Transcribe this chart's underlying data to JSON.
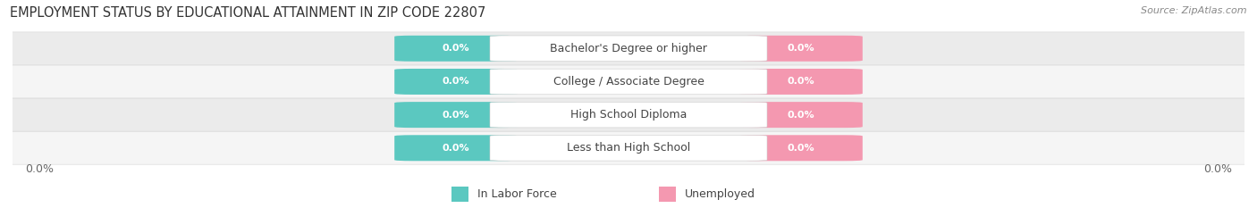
{
  "title": "EMPLOYMENT STATUS BY EDUCATIONAL ATTAINMENT IN ZIP CODE 22807",
  "source": "Source: ZipAtlas.com",
  "categories": [
    "Less than High School",
    "High School Diploma",
    "College / Associate Degree",
    "Bachelor's Degree or higher"
  ],
  "in_labor_force": [
    0.0,
    0.0,
    0.0,
    0.0
  ],
  "unemployed": [
    0.0,
    0.0,
    0.0,
    0.0
  ],
  "color_labor": "#5bc8c0",
  "color_unemployed": "#f498b0",
  "row_bg_colors": [
    "#f5f5f5",
    "#ebebeb"
  ],
  "xlim_left": "0.0%",
  "xlim_right": "0.0%",
  "label_value": "0.0%",
  "label_color": "#ffffff",
  "category_text_color": "#444444",
  "title_fontsize": 10.5,
  "source_fontsize": 8,
  "legend_fontsize": 9,
  "bar_label_fontsize": 8,
  "category_fontsize": 9,
  "axis_label_fontsize": 9,
  "title_color": "#333333",
  "source_color": "#888888",
  "axis_label_color": "#666666"
}
